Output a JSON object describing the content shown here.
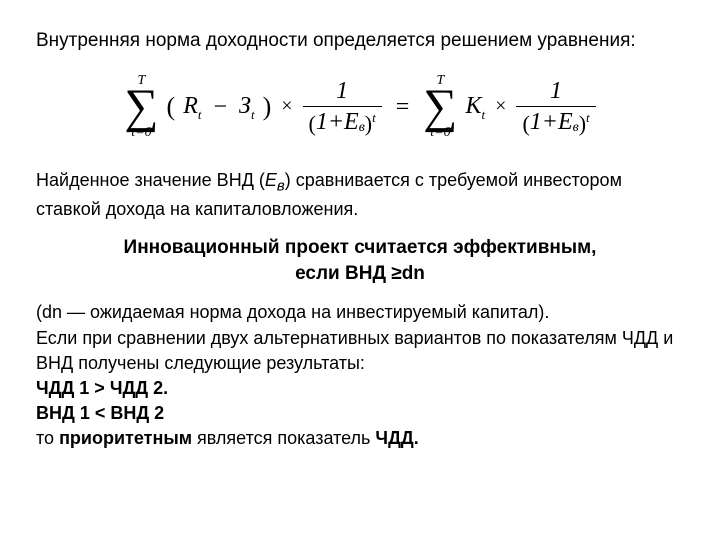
{
  "title": "Внутренняя норма доходности определяется решением уравнения:",
  "eq": {
    "sum_upper": "T",
    "sum_lower": "t=0",
    "R": "R",
    "Z": "З",
    "t": "t",
    "times": "×",
    "one": "1",
    "onePlus": "1+",
    "E": "E",
    "e_sub": "в",
    "equals": "=",
    "K": "K"
  },
  "para1_a": "Найденное значение ВНД (",
  "para1_E": "E",
  "para1_sub": "в",
  "para1_b": ") сравнивается с требуемой инвестором ставкой дохода на капиталовложения.",
  "bold1": "Инновационный проект считается эффективным,",
  "bold2": "если ВНД ≥dn",
  "block_a": "(dn — ожидаемая норма дохода на инвестируемый капитал).",
  "block_b": "Если при сравнении двух альтернативных вариантов по показателям ЧДД и ВНД получены следующие результаты:",
  "cmp1": "ЧДД 1 > ЧДД 2.",
  "cmp2": "ВНД 1 < ВНД 2",
  "block_c_a": "то ",
  "block_c_b": "приоритетным ",
  "block_c_c": "является показатель ",
  "block_c_d": "ЧДД."
}
